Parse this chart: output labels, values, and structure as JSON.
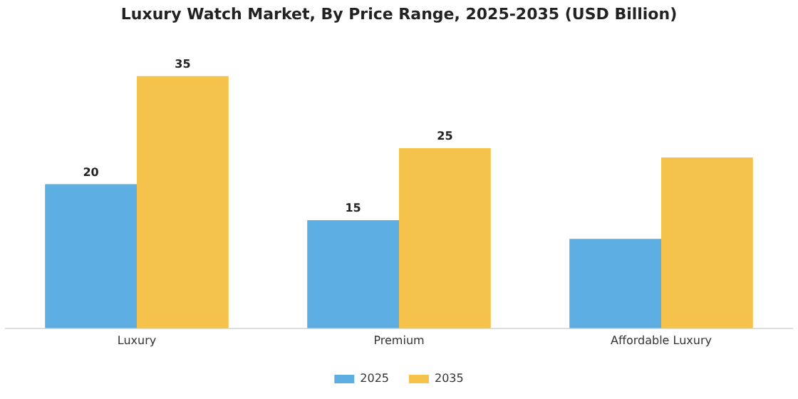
{
  "chart_data": {
    "type": "bar",
    "title": "Luxury Watch Market, By Price Range, 2025-2035 (USD Billion)",
    "categories": [
      "Luxury",
      "Premium",
      "Affordable Luxury"
    ],
    "series": [
      {
        "name": "2025",
        "color": "#5dafe3",
        "values": [
          20,
          15,
          12.4
        ],
        "value_labels": [
          "20",
          "15",
          null
        ]
      },
      {
        "name": "2035",
        "color": "#f5c24c",
        "values": [
          35,
          25,
          23.7
        ],
        "value_labels": [
          "35",
          "25",
          null
        ]
      }
    ],
    "legend": "bottom",
    "grid": false
  }
}
